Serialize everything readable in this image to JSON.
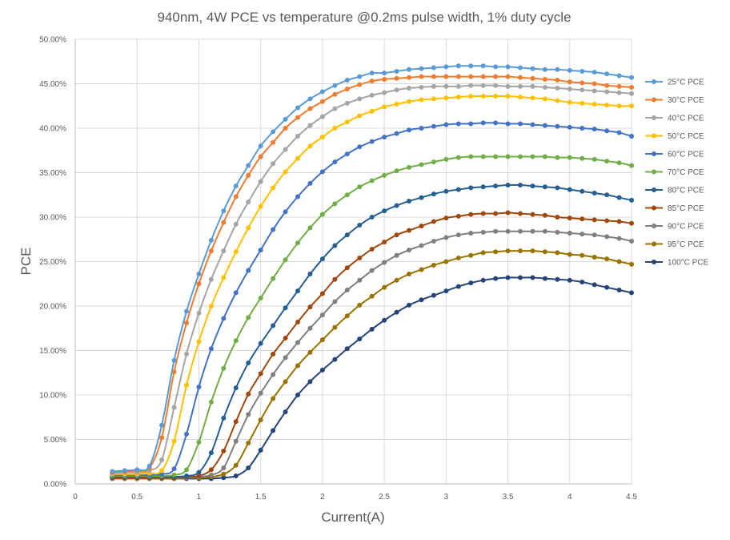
{
  "chart_data": {
    "type": "line",
    "title": "940nm, 4W PCE vs temperature @0.2ms pulse width, 1% duty cycle",
    "xlabel": "Current(A)",
    "ylabel": "PCE",
    "xlim": [
      0,
      4.5
    ],
    "ylim": [
      0,
      0.5
    ],
    "x_ticks": [
      "0",
      "0.5",
      "1",
      "1.5",
      "2",
      "2.5",
      "3",
      "3.5",
      "4",
      "4.5"
    ],
    "y_ticks": [
      "0.00%",
      "5.00%",
      "10.00%",
      "15.00%",
      "20.00%",
      "25.00%",
      "30.00%",
      "35.00%",
      "40.00%",
      "45.00%",
      "50.00%"
    ],
    "grid": "vertical and horizontal major gridlines",
    "legend": "right",
    "x": [
      0.3,
      0.4,
      0.5,
      0.6,
      0.7,
      0.8,
      0.9,
      1.0,
      1.1,
      1.2,
      1.3,
      1.4,
      1.5,
      1.6,
      1.7,
      1.8,
      1.9,
      2.0,
      2.1,
      2.2,
      2.3,
      2.4,
      2.5,
      2.6,
      2.7,
      2.8,
      2.9,
      3.0,
      3.1,
      3.2,
      3.3,
      3.4,
      3.5,
      3.6,
      3.7,
      3.8,
      3.9,
      4.0,
      4.1,
      4.2,
      4.3,
      4.4,
      4.5
    ],
    "series": [
      {
        "name": "25°C PCE",
        "color": "#5b9bd5",
        "values": [
          0.014,
          0.015,
          0.016,
          0.02,
          0.066,
          0.139,
          0.194,
          0.236,
          0.274,
          0.307,
          0.335,
          0.358,
          0.38,
          0.396,
          0.41,
          0.423,
          0.433,
          0.441,
          0.448,
          0.454,
          0.458,
          0.462,
          0.462,
          0.464,
          0.466,
          0.467,
          0.468,
          0.469,
          0.47,
          0.47,
          0.47,
          0.469,
          0.469,
          0.468,
          0.467,
          0.466,
          0.466,
          0.465,
          0.464,
          0.463,
          0.461,
          0.459,
          0.457
        ]
      },
      {
        "name": "30°C PCE",
        "color": "#ed7d31",
        "values": [
          0.013,
          0.014,
          0.015,
          0.018,
          0.052,
          0.126,
          0.181,
          0.225,
          0.262,
          0.294,
          0.323,
          0.347,
          0.368,
          0.384,
          0.4,
          0.412,
          0.422,
          0.43,
          0.438,
          0.444,
          0.449,
          0.453,
          0.455,
          0.456,
          0.457,
          0.458,
          0.458,
          0.458,
          0.458,
          0.458,
          0.458,
          0.458,
          0.458,
          0.457,
          0.456,
          0.455,
          0.454,
          0.452,
          0.451,
          0.45,
          0.448,
          0.447,
          0.446
        ]
      },
      {
        "name": "40°C PCE",
        "color": "#a5a5a5",
        "values": [
          0.012,
          0.013,
          0.013,
          0.015,
          0.027,
          0.086,
          0.146,
          0.192,
          0.23,
          0.262,
          0.292,
          0.317,
          0.34,
          0.36,
          0.376,
          0.391,
          0.403,
          0.413,
          0.422,
          0.428,
          0.433,
          0.437,
          0.44,
          0.443,
          0.445,
          0.446,
          0.447,
          0.447,
          0.447,
          0.448,
          0.448,
          0.448,
          0.447,
          0.447,
          0.447,
          0.446,
          0.445,
          0.444,
          0.443,
          0.442,
          0.441,
          0.44,
          0.439
        ]
      },
      {
        "name": "50°C PCE",
        "color": "#ffc000",
        "values": [
          0.011,
          0.011,
          0.011,
          0.012,
          0.015,
          0.048,
          0.111,
          0.16,
          0.2,
          0.232,
          0.261,
          0.288,
          0.312,
          0.333,
          0.351,
          0.366,
          0.38,
          0.39,
          0.4,
          0.407,
          0.414,
          0.419,
          0.424,
          0.427,
          0.43,
          0.432,
          0.433,
          0.434,
          0.435,
          0.436,
          0.436,
          0.436,
          0.436,
          0.435,
          0.434,
          0.433,
          0.431,
          0.429,
          0.428,
          0.427,
          0.426,
          0.425,
          0.425
        ]
      },
      {
        "name": "60°C PCE",
        "color": "#4472c4",
        "values": [
          0.01,
          0.01,
          0.01,
          0.01,
          0.011,
          0.017,
          0.056,
          0.109,
          0.152,
          0.186,
          0.215,
          0.24,
          0.263,
          0.286,
          0.306,
          0.323,
          0.338,
          0.351,
          0.362,
          0.371,
          0.379,
          0.385,
          0.39,
          0.394,
          0.398,
          0.4,
          0.402,
          0.404,
          0.405,
          0.405,
          0.406,
          0.406,
          0.405,
          0.405,
          0.404,
          0.403,
          0.402,
          0.401,
          0.4,
          0.399,
          0.397,
          0.395,
          0.391
        ]
      },
      {
        "name": "70°C PCE",
        "color": "#70ad47",
        "values": [
          0.009,
          0.009,
          0.009,
          0.009,
          0.009,
          0.01,
          0.016,
          0.047,
          0.092,
          0.13,
          0.161,
          0.187,
          0.209,
          0.231,
          0.252,
          0.271,
          0.288,
          0.303,
          0.315,
          0.325,
          0.334,
          0.341,
          0.347,
          0.352,
          0.356,
          0.359,
          0.362,
          0.365,
          0.367,
          0.368,
          0.368,
          0.368,
          0.368,
          0.368,
          0.368,
          0.368,
          0.367,
          0.367,
          0.366,
          0.365,
          0.363,
          0.361,
          0.358
        ]
      },
      {
        "name": "80°C PCE",
        "color": "#255e91",
        "values": [
          0.008,
          0.008,
          0.008,
          0.008,
          0.008,
          0.008,
          0.009,
          0.013,
          0.035,
          0.074,
          0.108,
          0.136,
          0.158,
          0.178,
          0.198,
          0.217,
          0.236,
          0.253,
          0.268,
          0.28,
          0.291,
          0.3,
          0.307,
          0.313,
          0.318,
          0.322,
          0.326,
          0.329,
          0.331,
          0.333,
          0.334,
          0.335,
          0.336,
          0.336,
          0.335,
          0.334,
          0.333,
          0.331,
          0.329,
          0.327,
          0.325,
          0.322,
          0.319
        ]
      },
      {
        "name": "85°C PCE",
        "color": "#9e480e",
        "values": [
          0.007,
          0.007,
          0.007,
          0.007,
          0.007,
          0.007,
          0.008,
          0.009,
          0.016,
          0.037,
          0.07,
          0.101,
          0.124,
          0.146,
          0.164,
          0.182,
          0.199,
          0.214,
          0.23,
          0.243,
          0.254,
          0.264,
          0.272,
          0.28,
          0.285,
          0.29,
          0.295,
          0.299,
          0.301,
          0.303,
          0.304,
          0.304,
          0.305,
          0.304,
          0.303,
          0.302,
          0.3,
          0.299,
          0.298,
          0.297,
          0.296,
          0.295,
          0.293
        ]
      },
      {
        "name": "90°C PCE",
        "color": "#7f7f7f",
        "values": [
          0.007,
          0.007,
          0.007,
          0.007,
          0.007,
          0.007,
          0.007,
          0.008,
          0.01,
          0.018,
          0.048,
          0.078,
          0.102,
          0.123,
          0.142,
          0.159,
          0.175,
          0.19,
          0.205,
          0.218,
          0.229,
          0.24,
          0.249,
          0.257,
          0.263,
          0.268,
          0.273,
          0.277,
          0.28,
          0.282,
          0.283,
          0.284,
          0.284,
          0.284,
          0.284,
          0.284,
          0.283,
          0.282,
          0.281,
          0.28,
          0.278,
          0.276,
          0.273
        ]
      },
      {
        "name": "95°C PCE",
        "color": "#997300",
        "values": [
          0.006,
          0.006,
          0.006,
          0.006,
          0.006,
          0.006,
          0.007,
          0.007,
          0.008,
          0.011,
          0.021,
          0.046,
          0.072,
          0.096,
          0.115,
          0.133,
          0.148,
          0.162,
          0.176,
          0.189,
          0.201,
          0.211,
          0.221,
          0.229,
          0.236,
          0.241,
          0.246,
          0.25,
          0.254,
          0.257,
          0.26,
          0.261,
          0.262,
          0.262,
          0.262,
          0.261,
          0.26,
          0.258,
          0.257,
          0.255,
          0.253,
          0.25,
          0.247
        ]
      },
      {
        "name": "100°C PCE",
        "color": "#264478",
        "values": [
          0.006,
          0.006,
          0.006,
          0.006,
          0.006,
          0.006,
          0.006,
          0.006,
          0.006,
          0.007,
          0.009,
          0.018,
          0.038,
          0.06,
          0.081,
          0.1,
          0.115,
          0.128,
          0.14,
          0.152,
          0.163,
          0.174,
          0.184,
          0.193,
          0.201,
          0.207,
          0.212,
          0.217,
          0.222,
          0.226,
          0.229,
          0.231,
          0.232,
          0.232,
          0.232,
          0.231,
          0.23,
          0.229,
          0.227,
          0.224,
          0.221,
          0.218,
          0.215
        ]
      }
    ]
  }
}
